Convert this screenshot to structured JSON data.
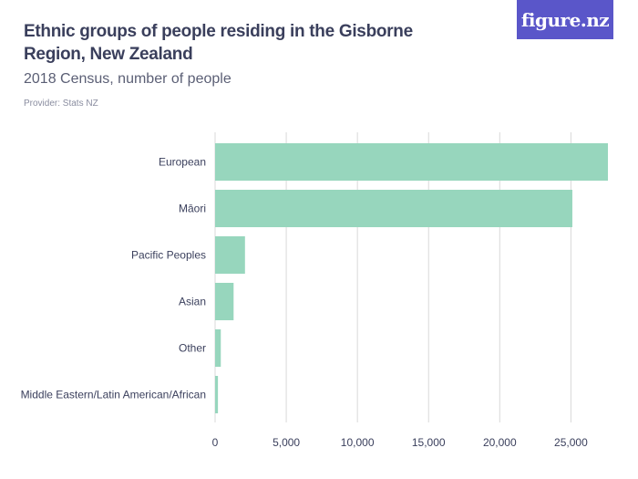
{
  "header": {
    "title": "Ethnic groups of people residing in the Gisborne Region, New Zealand",
    "subtitle": "2018 Census, number of people",
    "provider": "Provider: Stats NZ",
    "logo_text": "figure.nz"
  },
  "colors": {
    "bar": "#97d6bd",
    "grid": "#d9d9d9",
    "logo_bg": "#5a56c9"
  },
  "chart_data": {
    "type": "bar",
    "orientation": "horizontal",
    "categories": [
      "European",
      "Māori",
      "Pacific Peoples",
      "Asian",
      "Other",
      "Middle Eastern/Latin American/African"
    ],
    "values": [
      27600,
      25100,
      2100,
      1300,
      400,
      200
    ],
    "xlim": [
      0,
      27600
    ],
    "xticks": [
      0,
      5000,
      10000,
      15000,
      20000,
      25000
    ],
    "xtick_labels": [
      "0",
      "5,000",
      "10,000",
      "15,000",
      "20,000",
      "25,000"
    ],
    "grid": true,
    "legend": "none"
  }
}
